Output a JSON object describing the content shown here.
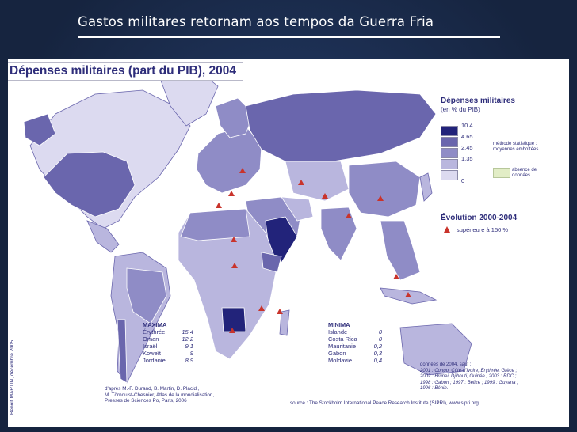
{
  "slide": {
    "title": "Gastos militares retornam aos tempos da Guerra Fria"
  },
  "map": {
    "heading": "Dépenses militaires (part du PIB), 2004",
    "legend": {
      "title": "Dépenses militaires",
      "subtitle": "(en % du PIB)",
      "classes": [
        {
          "label": "10.4",
          "color": "#22237a"
        },
        {
          "label": "4.65",
          "color": "#6a66ad"
        },
        {
          "label": "2.45",
          "color": "#8f8cc6"
        },
        {
          "label": "1.35",
          "color": "#b9b6de"
        },
        {
          "label": "0",
          "color": "#dcdaf0"
        }
      ],
      "method_note": "méthode statistique : moyennes emboîtées",
      "no_data_label": "absence de données",
      "no_data_color": "#e2edc6"
    },
    "evolution": {
      "title": "Évolution 2000-2004",
      "label": "supérieure à 150 %",
      "marker_color": "#c9332b"
    },
    "maxima": {
      "title": "MAXIMA",
      "rows": [
        {
          "country": "Érythrée",
          "value": "15,4"
        },
        {
          "country": "Oman",
          "value": "12,2"
        },
        {
          "country": "Israël",
          "value": "9,1"
        },
        {
          "country": "Koweït",
          "value": "9"
        },
        {
          "country": "Jordanie",
          "value": "8,9"
        }
      ]
    },
    "minima": {
      "title": "MINIMA",
      "rows": [
        {
          "country": "Islande",
          "value": "0"
        },
        {
          "country": "Costa Rica",
          "value": "0"
        },
        {
          "country": "Mauritanie",
          "value": "0,2"
        },
        {
          "country": "Gabon",
          "value": "0,3"
        },
        {
          "country": "Moldavie",
          "value": "0,4"
        }
      ]
    },
    "data_note": [
      "données de 2004, sauf :",
      "2001 : Congo, Côte-d'Ivoire, Érythrée, Grèce ;",
      "2002 : Brunei, Djibouti, Guinée ; 2003 : RDC ;",
      "1998 : Gabon ; 1997 : Belize ; 1999 : Guyana ;",
      "1996 : Bénin."
    ],
    "source_credit": [
      "d'après M.-F. Durand, B. Martin, D. Placidi,",
      "M. Törnquist-Chesnier, Atlas de la mondialisation,",
      "Presses de Sciences Po, Paris, 2006"
    ],
    "source": "source : The Stockholm International Peace Research Institute (SIPRI), www.sipri.org",
    "vertical_credit": "Benoît MARTIN, décembre 2005"
  }
}
